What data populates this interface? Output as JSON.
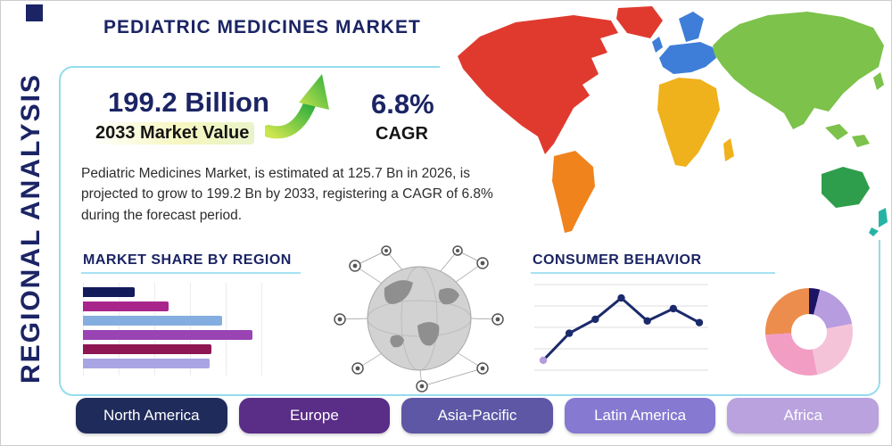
{
  "page": {
    "title": "PEDIATRIC MEDICINES MARKET",
    "side_label": "REGIONAL ANALYSIS"
  },
  "highlights": {
    "market_value": "199.2 Billion",
    "market_value_caption": "2033 Market Value",
    "cagr_value": "6.8%",
    "cagr_caption": "CAGR",
    "description": "Pediatric Medicines Market, is estimated at 125.7 Bn in 2026, is projected to grow to 199.2 Bn by 2033, registering a CAGR of 6.8% during the forecast period."
  },
  "sections": {
    "market_share_title": "MARKET SHARE BY REGION",
    "consumer_behavior_title": "CONSUMER BEHAVIOR"
  },
  "region_buttons": [
    {
      "label": "North America",
      "color": "#1f2b5b"
    },
    {
      "label": "Europe",
      "color": "#5a2d87"
    },
    {
      "label": "Asia-Pacific",
      "color": "#5d57a5"
    },
    {
      "label": "Latin America",
      "color": "#8579d1"
    },
    {
      "label": "Africa",
      "color": "#b9a2de"
    }
  ],
  "map_regions": [
    {
      "name": "North America",
      "color": "#e03a2f"
    },
    {
      "name": "South America",
      "color": "#f0831c"
    },
    {
      "name": "Europe",
      "color": "#3e7ed8"
    },
    {
      "name": "Africa",
      "color": "#efb11c"
    },
    {
      "name": "Asia",
      "color": "#7cc24b"
    },
    {
      "name": "Oceania",
      "color": "#2f9e4c"
    },
    {
      "name": "New Zealand",
      "color": "#27b3a4"
    }
  ],
  "chart_data": [
    {
      "type": "bar",
      "orientation": "horizontal",
      "title": "MARKET SHARE BY REGION",
      "categories": [
        "bar-1",
        "bar-2",
        "bar-3",
        "bar-4",
        "bar-5",
        "bar-6"
      ],
      "values": [
        24,
        40,
        65,
        79,
        60,
        59
      ],
      "colors": [
        "#131b5b",
        "#a8268c",
        "#85aee0",
        "#9a44b4",
        "#8e1653",
        "#a9a5e2"
      ],
      "xlim": [
        0,
        100
      ],
      "note": "unlabeled horizontal bars, relative market-share widths"
    },
    {
      "type": "line",
      "title": "CONSUMER BEHAVIOR",
      "x": [
        1,
        2,
        3,
        4,
        5,
        6,
        7
      ],
      "values": [
        12,
        45,
        62,
        88,
        60,
        75,
        58
      ],
      "ylim": [
        0,
        100
      ],
      "line_color": "#1b2a6b",
      "first_point_color": "#b39ddb",
      "grid": "horizontal",
      "note": "unlabeled trend line with markers"
    },
    {
      "type": "pie",
      "donut": true,
      "title": "regional split donut",
      "slices": [
        {
          "label": "slice-navy",
          "color": "#1b1464",
          "value": 4
        },
        {
          "label": "slice-lavender",
          "color": "#b79ce0",
          "value": 18
        },
        {
          "label": "slice-pale-pink",
          "color": "#f5c3d8",
          "value": 25
        },
        {
          "label": "slice-pink",
          "color": "#f29ec4",
          "value": 27
        },
        {
          "label": "slice-orange",
          "color": "#ec8d4d",
          "value": 26
        }
      ]
    }
  ]
}
